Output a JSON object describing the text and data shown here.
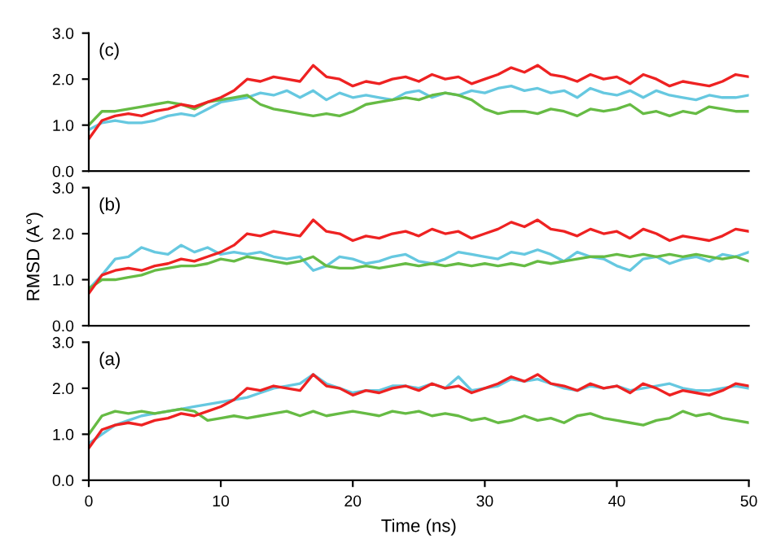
{
  "chart_data": [
    {
      "type": "line",
      "annotations": [
        "(c)"
      ],
      "x": [
        0,
        1,
        2,
        3,
        4,
        5,
        6,
        7,
        8,
        9,
        10,
        11,
        12,
        13,
        14,
        15,
        16,
        17,
        18,
        19,
        20,
        21,
        22,
        23,
        24,
        25,
        26,
        27,
        28,
        29,
        30,
        31,
        32,
        33,
        34,
        35,
        36,
        37,
        38,
        39,
        40,
        41,
        42,
        43,
        44,
        45,
        46,
        47,
        48,
        49,
        50
      ],
      "xlim": [
        0,
        50
      ],
      "xticks": [
        0,
        10,
        20,
        30,
        40,
        50
      ],
      "ylim": [
        0,
        3
      ],
      "yticks": [
        {
          "value": 0,
          "label": "0.0"
        },
        {
          "value": 1,
          "label": "1.0"
        },
        {
          "value": 2,
          "label": "2.0"
        },
        {
          "value": 3,
          "label": "3.0"
        }
      ],
      "tick_labels": "y",
      "grid": false,
      "legend": false,
      "series": [
        {
          "color": "#66c8e0",
          "values": [
            0.9,
            1.05,
            1.1,
            1.05,
            1.05,
            1.1,
            1.2,
            1.25,
            1.2,
            1.35,
            1.5,
            1.55,
            1.6,
            1.7,
            1.65,
            1.75,
            1.6,
            1.75,
            1.55,
            1.7,
            1.6,
            1.65,
            1.6,
            1.55,
            1.7,
            1.75,
            1.6,
            1.7,
            1.65,
            1.75,
            1.7,
            1.8,
            1.85,
            1.75,
            1.8,
            1.7,
            1.75,
            1.6,
            1.8,
            1.7,
            1.65,
            1.75,
            1.6,
            1.75,
            1.65,
            1.6,
            1.55,
            1.65,
            1.6,
            1.6,
            1.65
          ]
        },
        {
          "color": "#66bb44",
          "values": [
            1.0,
            1.3,
            1.3,
            1.35,
            1.4,
            1.45,
            1.5,
            1.45,
            1.35,
            1.5,
            1.55,
            1.6,
            1.65,
            1.45,
            1.35,
            1.3,
            1.25,
            1.2,
            1.25,
            1.2,
            1.3,
            1.45,
            1.5,
            1.55,
            1.6,
            1.55,
            1.65,
            1.7,
            1.65,
            1.55,
            1.35,
            1.25,
            1.3,
            1.3,
            1.25,
            1.35,
            1.3,
            1.2,
            1.35,
            1.3,
            1.35,
            1.45,
            1.25,
            1.3,
            1.2,
            1.3,
            1.25,
            1.4,
            1.35,
            1.3,
            1.3
          ]
        },
        {
          "color": "#ee2222",
          "values": [
            0.7,
            1.1,
            1.2,
            1.25,
            1.2,
            1.3,
            1.35,
            1.45,
            1.4,
            1.5,
            1.6,
            1.75,
            2.0,
            1.95,
            2.05,
            2.0,
            1.95,
            2.3,
            2.05,
            2.0,
            1.85,
            1.95,
            1.9,
            2.0,
            2.05,
            1.95,
            2.1,
            2.0,
            2.05,
            1.9,
            2.0,
            2.1,
            2.25,
            2.15,
            2.3,
            2.1,
            2.05,
            1.95,
            2.1,
            2.0,
            2.05,
            1.9,
            2.1,
            2.0,
            1.85,
            1.95,
            1.9,
            1.85,
            1.95,
            2.1,
            2.05
          ]
        }
      ]
    },
    {
      "type": "line",
      "annotations": [
        "(b)"
      ],
      "ylabel": "RMSD (A°)",
      "x": [
        0,
        1,
        2,
        3,
        4,
        5,
        6,
        7,
        8,
        9,
        10,
        11,
        12,
        13,
        14,
        15,
        16,
        17,
        18,
        19,
        20,
        21,
        22,
        23,
        24,
        25,
        26,
        27,
        28,
        29,
        30,
        31,
        32,
        33,
        34,
        35,
        36,
        37,
        38,
        39,
        40,
        41,
        42,
        43,
        44,
        45,
        46,
        47,
        48,
        49,
        50
      ],
      "xlim": [
        0,
        50
      ],
      "xticks": [
        0,
        10,
        20,
        30,
        40,
        50
      ],
      "ylim": [
        0,
        3
      ],
      "yticks": [
        {
          "value": 0,
          "label": "0.0"
        },
        {
          "value": 1,
          "label": "1.0"
        },
        {
          "value": 2,
          "label": "2.0"
        },
        {
          "value": 3,
          "label": "3.0"
        }
      ],
      "tick_labels": "y",
      "grid": false,
      "legend": false,
      "series": [
        {
          "color": "#66c8e0",
          "values": [
            0.8,
            1.1,
            1.45,
            1.5,
            1.7,
            1.6,
            1.55,
            1.75,
            1.6,
            1.7,
            1.55,
            1.6,
            1.55,
            1.6,
            1.5,
            1.45,
            1.5,
            1.2,
            1.3,
            1.5,
            1.45,
            1.35,
            1.4,
            1.5,
            1.55,
            1.4,
            1.35,
            1.45,
            1.6,
            1.55,
            1.5,
            1.45,
            1.6,
            1.55,
            1.65,
            1.55,
            1.4,
            1.6,
            1.5,
            1.45,
            1.3,
            1.2,
            1.45,
            1.5,
            1.35,
            1.45,
            1.5,
            1.4,
            1.55,
            1.5,
            1.6
          ]
        },
        {
          "color": "#66bb44",
          "values": [
            0.8,
            1.0,
            1.0,
            1.05,
            1.1,
            1.2,
            1.25,
            1.3,
            1.3,
            1.35,
            1.45,
            1.4,
            1.5,
            1.45,
            1.4,
            1.35,
            1.4,
            1.5,
            1.3,
            1.25,
            1.25,
            1.3,
            1.25,
            1.3,
            1.35,
            1.3,
            1.35,
            1.3,
            1.35,
            1.3,
            1.35,
            1.3,
            1.35,
            1.3,
            1.4,
            1.35,
            1.4,
            1.45,
            1.5,
            1.5,
            1.55,
            1.5,
            1.55,
            1.5,
            1.55,
            1.5,
            1.55,
            1.5,
            1.45,
            1.5,
            1.4
          ]
        },
        {
          "color": "#ee2222",
          "values": [
            0.7,
            1.1,
            1.2,
            1.25,
            1.2,
            1.3,
            1.35,
            1.45,
            1.4,
            1.5,
            1.6,
            1.75,
            2.0,
            1.95,
            2.05,
            2.0,
            1.95,
            2.3,
            2.05,
            2.0,
            1.85,
            1.95,
            1.9,
            2.0,
            2.05,
            1.95,
            2.1,
            2.0,
            2.05,
            1.9,
            2.0,
            2.1,
            2.25,
            2.15,
            2.3,
            2.1,
            2.05,
            1.95,
            2.1,
            2.0,
            2.05,
            1.9,
            2.1,
            2.0,
            1.85,
            1.95,
            1.9,
            1.85,
            1.95,
            2.1,
            2.05
          ]
        }
      ]
    },
    {
      "type": "line",
      "annotations": [
        "(a)"
      ],
      "xlabel": "Time (ns)",
      "x": [
        0,
        1,
        2,
        3,
        4,
        5,
        6,
        7,
        8,
        9,
        10,
        11,
        12,
        13,
        14,
        15,
        16,
        17,
        18,
        19,
        20,
        21,
        22,
        23,
        24,
        25,
        26,
        27,
        28,
        29,
        30,
        31,
        32,
        33,
        34,
        35,
        36,
        37,
        38,
        39,
        40,
        41,
        42,
        43,
        44,
        45,
        46,
        47,
        48,
        49,
        50
      ],
      "xlim": [
        0,
        50
      ],
      "xticks": [
        0,
        10,
        20,
        30,
        40,
        50
      ],
      "ylim": [
        0,
        3
      ],
      "yticks": [
        {
          "value": 0,
          "label": "0.0"
        },
        {
          "value": 1,
          "label": "1.0"
        },
        {
          "value": 2,
          "label": "2.0"
        },
        {
          "value": 3,
          "label": "3.0"
        }
      ],
      "grid": false,
      "legend": false,
      "series": [
        {
          "color": "#66c8e0",
          "values": [
            0.8,
            1.0,
            1.2,
            1.3,
            1.4,
            1.45,
            1.5,
            1.55,
            1.6,
            1.65,
            1.7,
            1.75,
            1.8,
            1.9,
            2.0,
            2.05,
            2.1,
            2.3,
            2.1,
            2.0,
            1.9,
            1.95,
            1.95,
            2.05,
            2.05,
            2.0,
            2.1,
            2.0,
            2.25,
            1.95,
            2.0,
            2.05,
            2.2,
            2.15,
            2.2,
            2.1,
            2.0,
            1.95,
            2.05,
            2.0,
            2.05,
            1.95,
            2.0,
            2.05,
            2.1,
            2.0,
            1.95,
            1.95,
            2.0,
            2.05,
            2.0
          ]
        },
        {
          "color": "#66bb44",
          "values": [
            1.0,
            1.4,
            1.5,
            1.45,
            1.5,
            1.45,
            1.5,
            1.55,
            1.5,
            1.3,
            1.35,
            1.4,
            1.35,
            1.4,
            1.45,
            1.5,
            1.4,
            1.5,
            1.4,
            1.45,
            1.5,
            1.45,
            1.4,
            1.5,
            1.45,
            1.5,
            1.4,
            1.45,
            1.4,
            1.3,
            1.35,
            1.25,
            1.3,
            1.4,
            1.3,
            1.35,
            1.25,
            1.4,
            1.45,
            1.35,
            1.3,
            1.25,
            1.2,
            1.3,
            1.35,
            1.5,
            1.4,
            1.45,
            1.35,
            1.3,
            1.25
          ]
        },
        {
          "color": "#ee2222",
          "values": [
            0.7,
            1.1,
            1.2,
            1.25,
            1.2,
            1.3,
            1.35,
            1.45,
            1.4,
            1.5,
            1.6,
            1.75,
            2.0,
            1.95,
            2.05,
            2.0,
            1.95,
            2.3,
            2.05,
            2.0,
            1.85,
            1.95,
            1.9,
            2.0,
            2.05,
            1.95,
            2.1,
            2.0,
            2.05,
            1.9,
            2.0,
            2.1,
            2.25,
            2.15,
            2.3,
            2.1,
            2.05,
            1.95,
            2.1,
            2.0,
            2.05,
            1.9,
            2.1,
            2.0,
            1.85,
            1.95,
            1.9,
            1.85,
            1.95,
            2.1,
            2.05
          ]
        }
      ]
    }
  ]
}
